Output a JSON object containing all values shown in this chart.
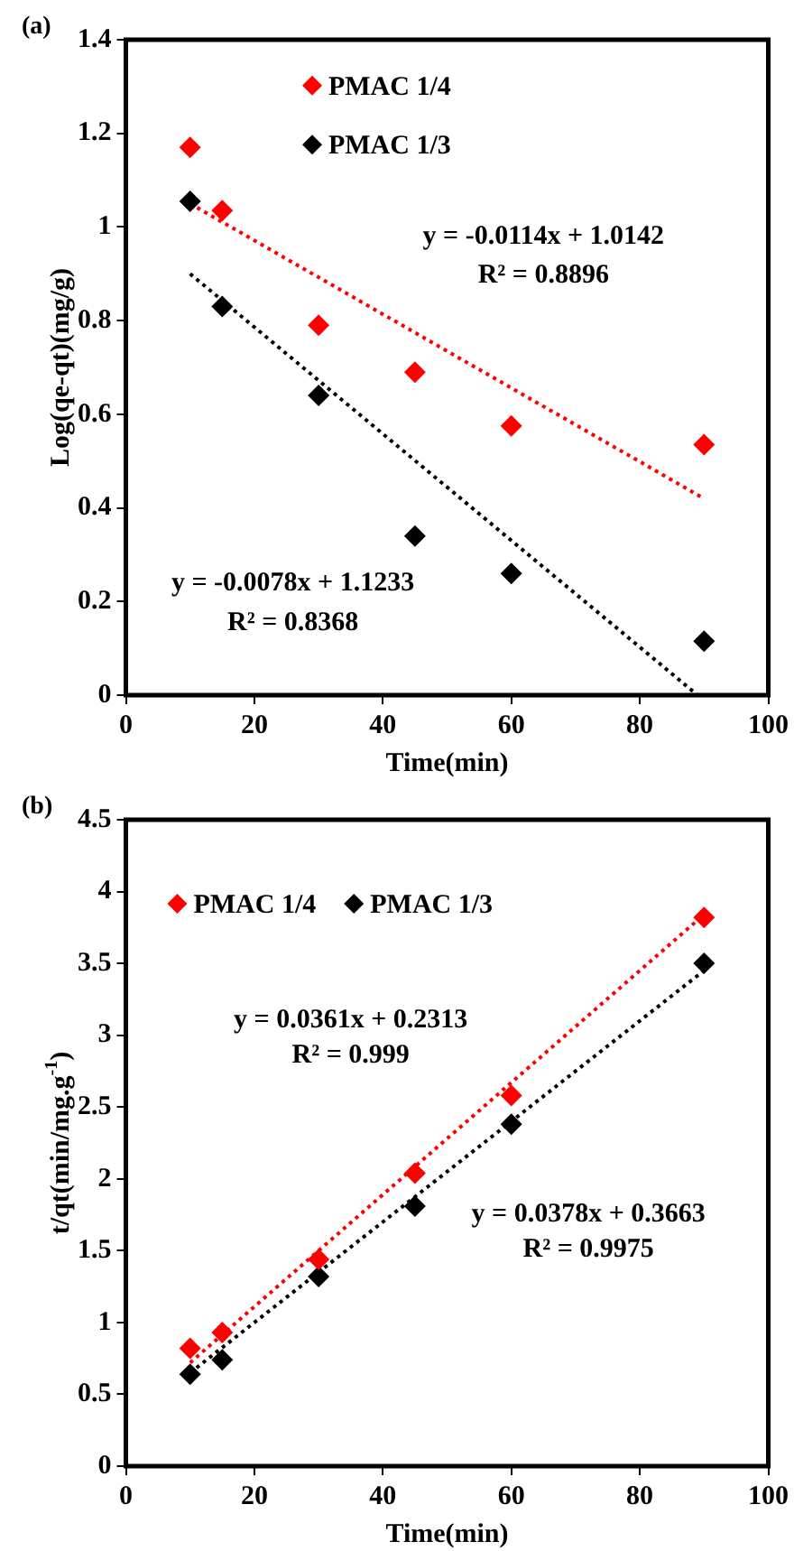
{
  "chart_data": [
    {
      "type": "scatter",
      "title": "(a)",
      "xlabel": "Time(min)",
      "ylabel": "Log(qe-qt)(mg/g)",
      "xlim": [
        0,
        100
      ],
      "xticks": [
        0,
        20,
        40,
        60,
        80,
        100
      ],
      "ylim": [
        0,
        1.4
      ],
      "yticks": [
        0,
        0.2,
        0.4,
        0.6,
        0.8,
        1,
        1.2,
        1.4
      ],
      "grid": false,
      "legend": "top",
      "x": [
        10,
        15,
        30,
        45,
        60,
        90
      ],
      "series": [
        {
          "name": "PMAC 1/4",
          "color": "#ff0000",
          "marker": "diamond",
          "values": [
            1.17,
            1.035,
            0.79,
            0.69,
            0.575,
            0.535
          ]
        },
        {
          "name": "PMAC 1/3",
          "color": "#000000",
          "marker": "diamond",
          "values": [
            1.055,
            0.83,
            0.64,
            0.34,
            0.26,
            0.115
          ]
        },
        {
          "type": "line",
          "color": "#ff0000",
          "marker": "none",
          "line_style": "dotted",
          "x": [
            10,
            90
          ],
          "values": [
            1.05,
            0.42
          ]
        },
        {
          "type": "line",
          "color": "#000000",
          "marker": "none",
          "line_style": "dotted",
          "x": [
            10,
            89
          ],
          "values": [
            0.9,
            0
          ]
        }
      ],
      "annotations": [
        "y = -0.0114x + 1.0142",
        "R² = 0.8896",
        "y = -0.0078x + 1.1233",
        "R² = 0.8368"
      ]
    },
    {
      "type": "scatter",
      "title": "(b)",
      "xlabel": "Time(min)",
      "ylabel": "t/qt(min/mg.g$^{-1}$)",
      "xlim": [
        0,
        100
      ],
      "xticks": [
        0,
        20,
        40,
        60,
        80,
        100
      ],
      "ylim": [
        0,
        4.5
      ],
      "yticks": [
        0,
        0.5,
        1,
        1.5,
        2,
        2.5,
        3,
        3.5,
        4,
        4.5
      ],
      "grid": false,
      "legend": "top left",
      "x": [
        10,
        15,
        30,
        45,
        60,
        90
      ],
      "series": [
        {
          "name": "PMAC 1/4",
          "color": "#ff0000",
          "marker": "diamond",
          "values": [
            0.82,
            0.93,
            1.44,
            2.04,
            2.58,
            3.82
          ]
        },
        {
          "name": "PMAC 1/3",
          "color": "#000000",
          "marker": "diamond",
          "values": [
            0.64,
            0.74,
            1.32,
            1.81,
            2.38,
            3.5
          ]
        },
        {
          "type": "line",
          "color": "#ff0000",
          "marker": "none",
          "line_style": "dotted",
          "x": [
            10,
            90
          ],
          "values": [
            0.72,
            3.84
          ]
        },
        {
          "type": "line",
          "color": "#000000",
          "marker": "none",
          "line_style": "dotted",
          "x": [
            10,
            90
          ],
          "values": [
            0.65,
            3.45
          ]
        }
      ],
      "annotations": [
        "y = 0.0361x + 0.2313",
        "R² = 0.999",
        "y = 0.0378x + 0.3663",
        "R² = 0.9975"
      ]
    }
  ]
}
